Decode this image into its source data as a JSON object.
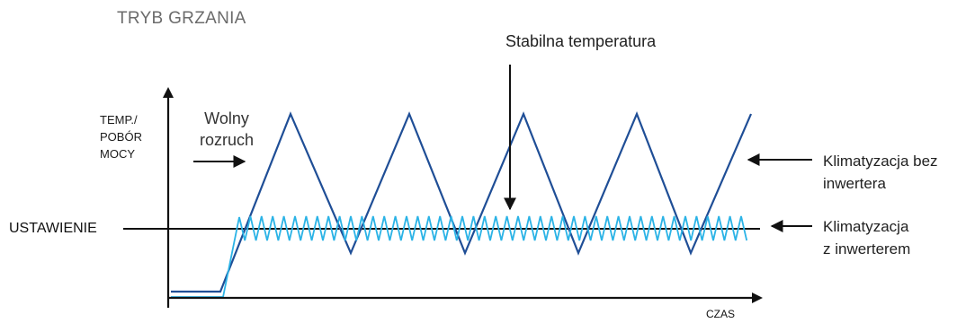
{
  "title": "TRYB GRZANIA",
  "axes": {
    "y_label_lines": [
      "TEMP./",
      "POBÓR",
      "MOCY"
    ],
    "x_label": "CZAS",
    "setpoint_label": "USTAWIENIE"
  },
  "annotations": {
    "slow_start_lines": [
      "Wolny",
      "rozruch"
    ],
    "stable_temp": "Stabilna temperatura"
  },
  "series": {
    "without_inverter": {
      "label_lines": [
        "Klimatyzacja bez",
        "inwertera"
      ],
      "color": "#1f4e96"
    },
    "with_inverter": {
      "label_lines": [
        "Klimatyzacja",
        "z inwerterem"
      ],
      "color": "#2bb3e6"
    }
  },
  "colors": {
    "axis": "#111111",
    "text_muted": "#6b6b6b"
  }
}
